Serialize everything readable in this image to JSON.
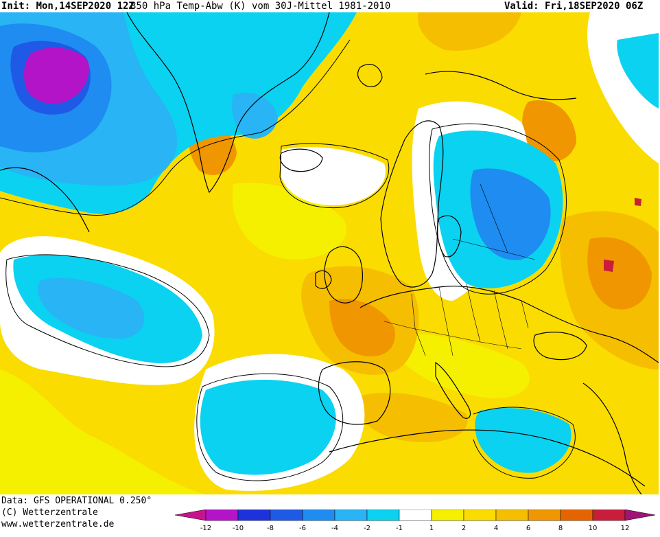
{
  "header": {
    "init": "Init: Mon,14SEP2020 12Z",
    "title": "850 hPa Temp-Abw (K) vom 30J-Mittel 1981-2010",
    "valid": "Valid: Fri,18SEP2020 06Z"
  },
  "footer": {
    "data_source": "Data: GFS OPERATIONAL 0.250°",
    "copyright": "(C) Wetterzentrale",
    "url": "www.wetterzentrale.de"
  },
  "legend": {
    "ticks": [
      "-12",
      "-10",
      "-8",
      "-6",
      "-4",
      "-2",
      "-1",
      "1",
      "2",
      "4",
      "6",
      "8",
      "10",
      "12"
    ],
    "colors": {
      "lt_minus_12": "#c8148c",
      "m12_m10": "#b414c8",
      "m10_m8": "#1e32dc",
      "m8_m6": "#1e5ae6",
      "m6_m4": "#1e8cf0",
      "m4_m2": "#28b4f5",
      "m2_m1": "#0ad2f0",
      "m1_p1": "#ffffff",
      "p1_p2": "#f5f000",
      "p2_p4": "#fadc00",
      "p4_p6": "#f5be00",
      "p6_p8": "#f09600",
      "p8_p10": "#e66400",
      "p10_p12": "#c81e3c",
      "gt_12": "#a01478"
    }
  }
}
